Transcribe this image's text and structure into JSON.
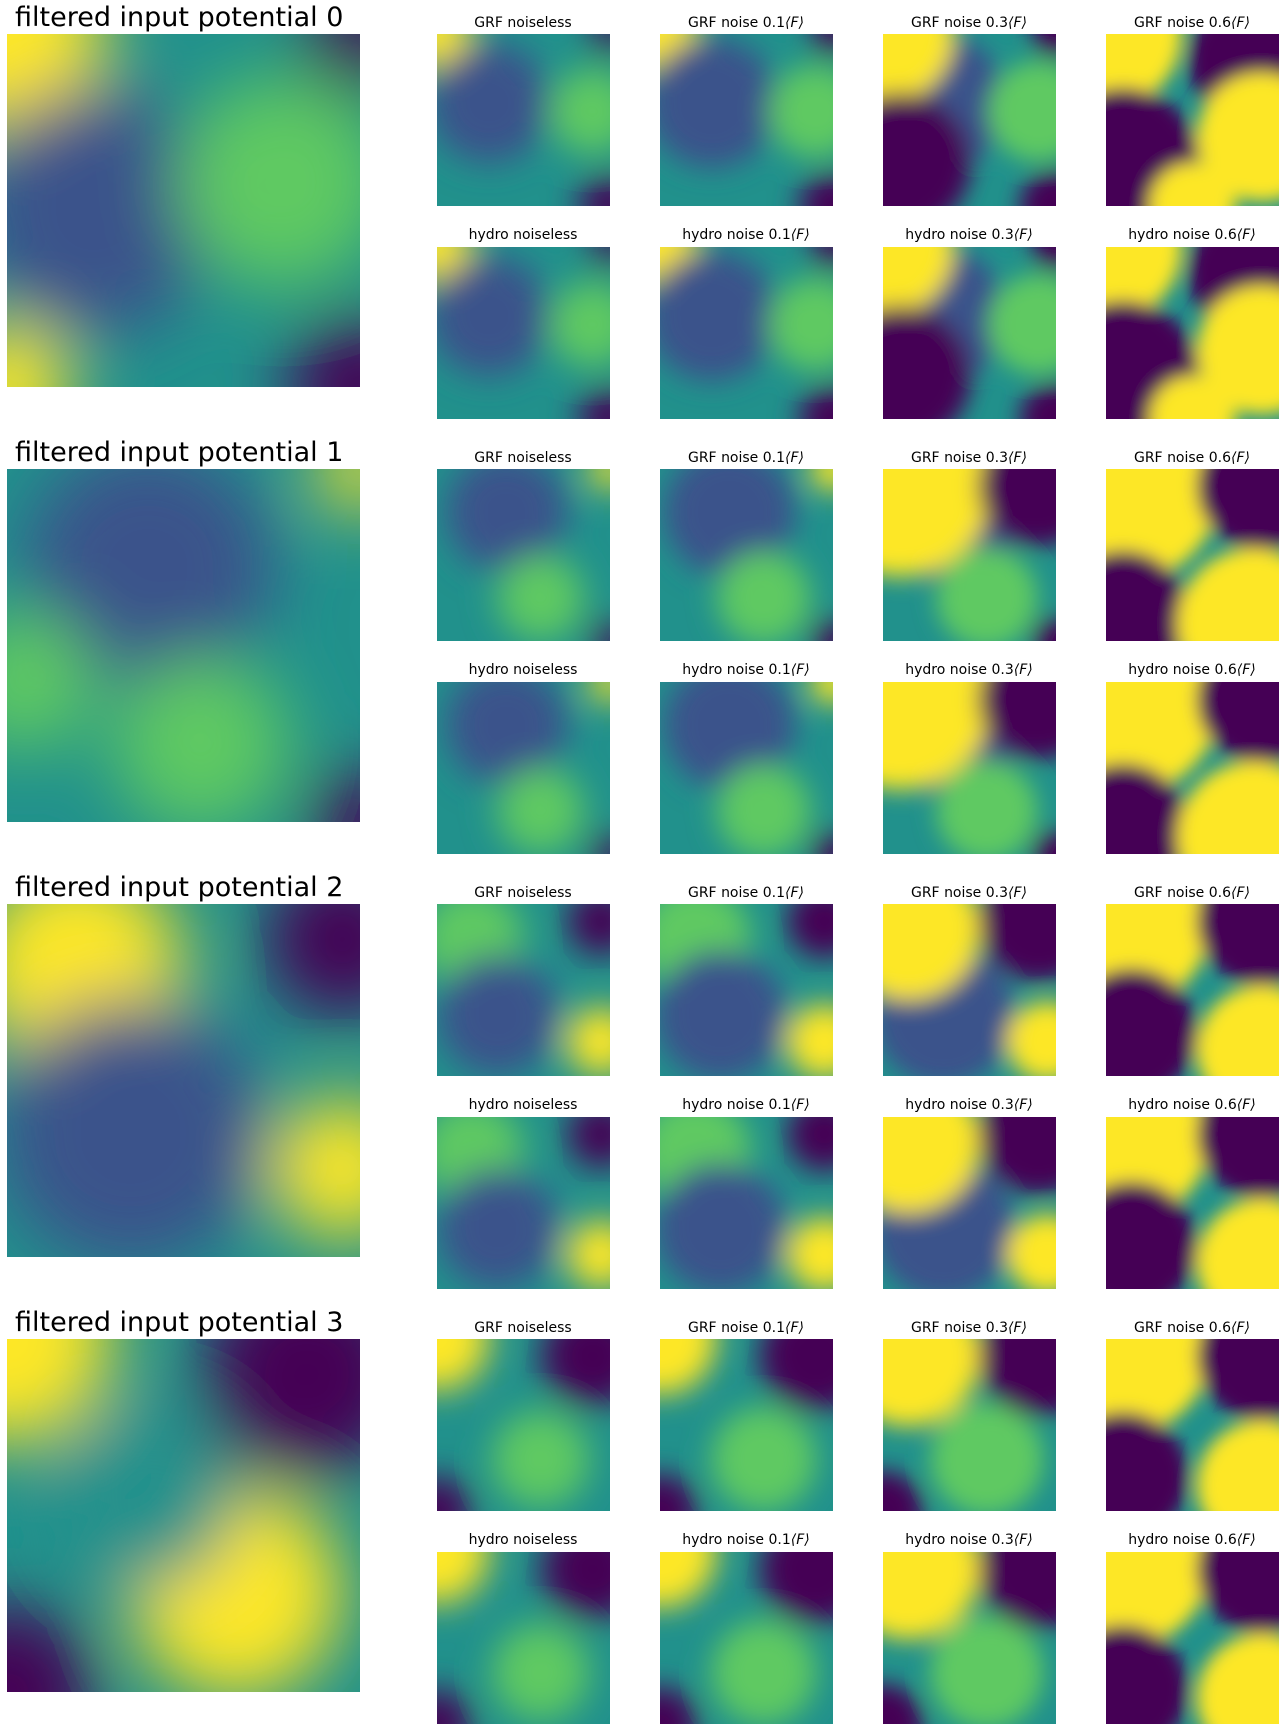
{
  "colors": {
    "viridis": [
      "#440154",
      "#3b528b",
      "#21918c",
      "#5ec962",
      "#fde725"
    ]
  },
  "suffix_math": "⟨F⟩",
  "panels": [
    {
      "title": "filtered input potential 0",
      "subplots": [
        {
          "prefix": "GRF noiseless",
          "math": false
        },
        {
          "prefix": "GRF noise 0.1",
          "math": true
        },
        {
          "prefix": "GRF noise 0.3",
          "math": true
        },
        {
          "prefix": "GRF noise 0.6",
          "math": true
        },
        {
          "prefix": "hydro noiseless",
          "math": false
        },
        {
          "prefix": "hydro noise 0.1",
          "math": true
        },
        {
          "prefix": "hydro noise 0.3",
          "math": true
        },
        {
          "prefix": "hydro noise 0.6",
          "math": true
        }
      ]
    },
    {
      "title": "filtered input potential 1",
      "subplots": [
        {
          "prefix": "GRF noiseless",
          "math": false
        },
        {
          "prefix": "GRF noise 0.1",
          "math": true
        },
        {
          "prefix": "GRF noise 0.3",
          "math": true
        },
        {
          "prefix": "GRF noise 0.6",
          "math": true
        },
        {
          "prefix": "hydro noiseless",
          "math": false
        },
        {
          "prefix": "hydro noise 0.1",
          "math": true
        },
        {
          "prefix": "hydro noise 0.3",
          "math": true
        },
        {
          "prefix": "hydro noise 0.6",
          "math": true
        }
      ]
    },
    {
      "title": "filtered input potential 2",
      "subplots": [
        {
          "prefix": "GRF noiseless",
          "math": false
        },
        {
          "prefix": "GRF noise 0.1",
          "math": true
        },
        {
          "prefix": "GRF noise 0.3",
          "math": true
        },
        {
          "prefix": "GRF noise 0.6",
          "math": true
        },
        {
          "prefix": "hydro noiseless",
          "math": false
        },
        {
          "prefix": "hydro noise 0.1",
          "math": true
        },
        {
          "prefix": "hydro noise 0.3",
          "math": true
        },
        {
          "prefix": "hydro noise 0.6",
          "math": true
        }
      ]
    },
    {
      "title": "filtered input potential 3",
      "subplots": [
        {
          "prefix": "GRF noiseless",
          "math": false
        },
        {
          "prefix": "GRF noise 0.1",
          "math": true
        },
        {
          "prefix": "GRF noise 0.3",
          "math": true
        },
        {
          "prefix": "GRF noise 0.6",
          "math": true
        },
        {
          "prefix": "hydro noiseless",
          "math": false
        },
        {
          "prefix": "hydro noise 0.1",
          "math": true
        },
        {
          "prefix": "hydro noise 0.3",
          "math": true
        },
        {
          "prefix": "hydro noise 0.6",
          "math": true
        }
      ]
    }
  ]
}
